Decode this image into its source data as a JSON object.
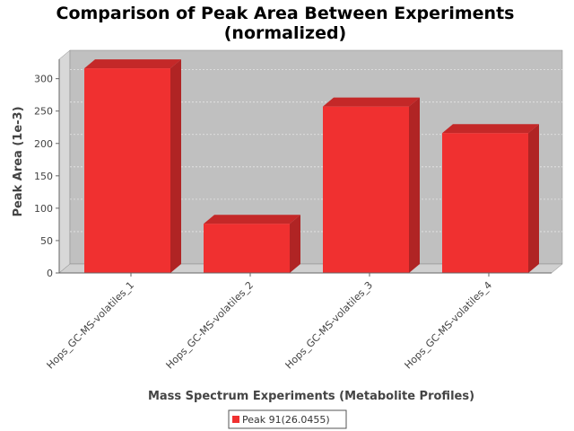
{
  "chart_data": {
    "type": "bar",
    "title_line1": "Comparison of Peak Area Between Experiments",
    "title_line2": "(normalized)",
    "xlabel": "Mass Spectrum Experiments (Metabolite Profiles)",
    "ylabel": "Peak Area (1e-3)",
    "categories": [
      "Hops_GC-MS-volatiles_1",
      "Hops_GC-MS-volatiles_2",
      "Hops_GC-MS-volatiles_3",
      "Hops_GC-MS-volatiles_4"
    ],
    "series": [
      {
        "name": "Peak 91(26.0455)",
        "values": [
          316,
          76,
          257,
          216
        ]
      }
    ],
    "ylim": [
      0,
      330
    ],
    "yticks": [
      0,
      50,
      100,
      150,
      200,
      250,
      300
    ],
    "grid": true,
    "legend_position": "bottom",
    "colors": {
      "bar_front": "#f03030",
      "bar_top": "#c42828",
      "bar_side": "#b02424",
      "plot_bg": "#c0c0c0",
      "wall_side": "#d8d8d8",
      "floor": "#d0d0d0",
      "grid": "#e6e6e6",
      "text": "#444444"
    }
  }
}
